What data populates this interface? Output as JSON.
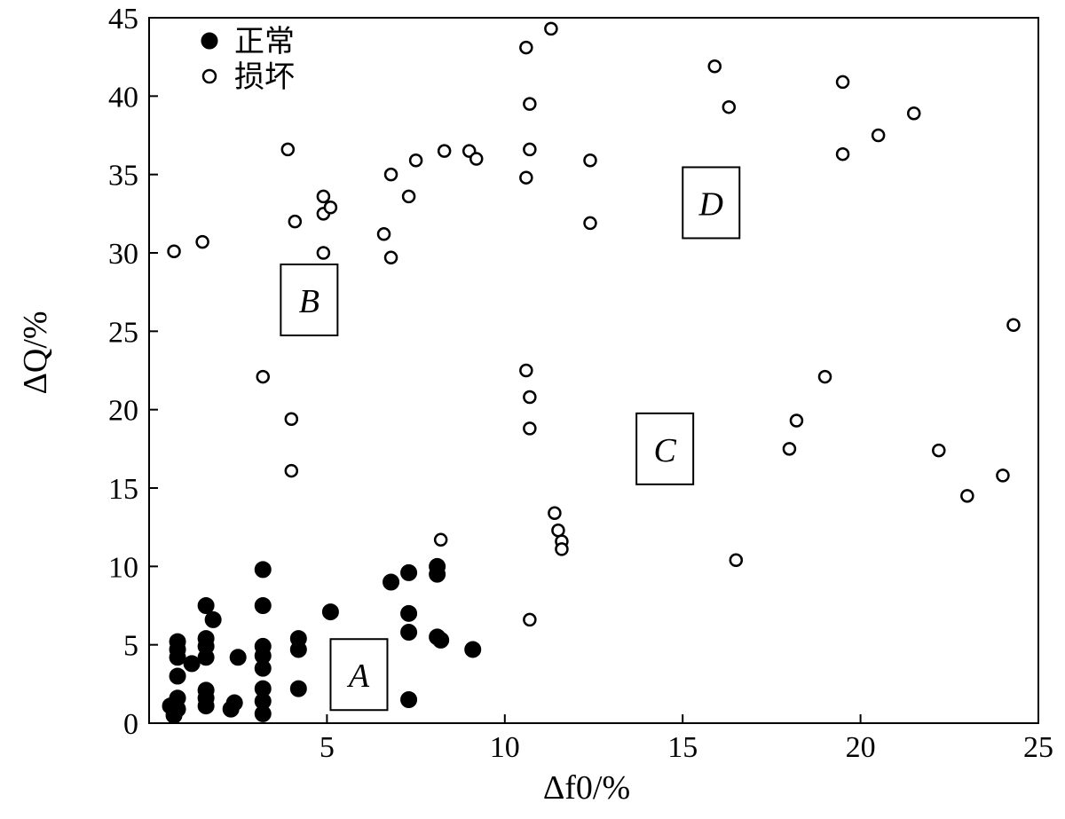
{
  "chart_data": {
    "type": "scatter",
    "xlabel": "Δf0/%",
    "ylabel": "ΔQ/%",
    "xlim": [
      0,
      25
    ],
    "ylim": [
      0,
      45
    ],
    "x_ticks": [
      5,
      10,
      15,
      20,
      25
    ],
    "y_ticks": [
      0,
      5,
      10,
      15,
      20,
      25,
      30,
      35,
      40,
      45
    ],
    "grid": false,
    "legend_position": "top-left",
    "series": [
      {
        "name": "正常",
        "marker": "filled-circle",
        "points": [
          [
            0.8,
            5.2
          ],
          [
            0.8,
            4.7
          ],
          [
            0.8,
            4.2
          ],
          [
            0.8,
            3.0
          ],
          [
            0.8,
            1.6
          ],
          [
            0.8,
            0.9
          ],
          [
            0.6,
            1.1
          ],
          [
            0.7,
            0.5
          ],
          [
            1.2,
            3.8
          ],
          [
            1.6,
            7.5
          ],
          [
            1.6,
            5.4
          ],
          [
            1.6,
            4.9
          ],
          [
            1.6,
            4.2
          ],
          [
            1.6,
            2.1
          ],
          [
            1.6,
            1.6
          ],
          [
            1.6,
            1.1
          ],
          [
            1.8,
            6.6
          ],
          [
            2.3,
            0.9
          ],
          [
            2.4,
            1.3
          ],
          [
            2.5,
            4.2
          ],
          [
            3.2,
            9.8
          ],
          [
            3.2,
            7.5
          ],
          [
            3.2,
            4.9
          ],
          [
            3.2,
            4.3
          ],
          [
            3.2,
            3.5
          ],
          [
            3.2,
            2.2
          ],
          [
            3.2,
            1.4
          ],
          [
            3.2,
            0.6
          ],
          [
            4.2,
            5.4
          ],
          [
            4.2,
            4.7
          ],
          [
            4.2,
            2.2
          ],
          [
            5.1,
            7.1
          ],
          [
            6.8,
            9.0
          ],
          [
            7.3,
            9.6
          ],
          [
            7.3,
            7.0
          ],
          [
            7.3,
            5.8
          ],
          [
            7.3,
            1.5
          ],
          [
            8.1,
            10.0
          ],
          [
            8.1,
            9.5
          ],
          [
            8.1,
            5.5
          ],
          [
            8.2,
            5.3
          ],
          [
            9.1,
            4.7
          ]
        ]
      },
      {
        "name": "损坏",
        "marker": "open-circle",
        "points": [
          [
            0.7,
            30.1
          ],
          [
            1.5,
            30.7
          ],
          [
            3.2,
            22.1
          ],
          [
            3.9,
            36.6
          ],
          [
            4.0,
            19.4
          ],
          [
            4.0,
            16.1
          ],
          [
            4.1,
            32.0
          ],
          [
            4.9,
            33.6
          ],
          [
            4.9,
            32.5
          ],
          [
            5.1,
            32.9
          ],
          [
            4.9,
            30.0
          ],
          [
            6.6,
            31.2
          ],
          [
            6.8,
            29.7
          ],
          [
            6.8,
            35.0
          ],
          [
            7.3,
            33.6
          ],
          [
            7.5,
            35.9
          ],
          [
            8.2,
            11.7
          ],
          [
            8.3,
            36.5
          ],
          [
            9.0,
            36.5
          ],
          [
            9.2,
            36.0
          ],
          [
            10.6,
            43.1
          ],
          [
            10.6,
            34.8
          ],
          [
            10.7,
            39.5
          ],
          [
            10.7,
            36.6
          ],
          [
            10.6,
            22.5
          ],
          [
            10.7,
            20.8
          ],
          [
            10.7,
            18.8
          ],
          [
            10.7,
            6.6
          ],
          [
            11.3,
            44.3
          ],
          [
            11.4,
            13.4
          ],
          [
            11.5,
            12.3
          ],
          [
            11.6,
            11.6
          ],
          [
            11.6,
            11.1
          ],
          [
            12.4,
            35.9
          ],
          [
            12.4,
            31.9
          ],
          [
            15.9,
            41.9
          ],
          [
            16.3,
            39.3
          ],
          [
            16.5,
            10.4
          ],
          [
            18.0,
            17.5
          ],
          [
            18.2,
            19.3
          ],
          [
            19.0,
            22.1
          ],
          [
            19.5,
            40.9
          ],
          [
            19.5,
            36.3
          ],
          [
            20.5,
            37.5
          ],
          [
            21.5,
            38.9
          ],
          [
            22.2,
            17.4
          ],
          [
            23.0,
            14.5
          ],
          [
            24.0,
            15.8
          ],
          [
            24.3,
            25.4
          ]
        ]
      }
    ],
    "annotations": [
      {
        "text": "A",
        "x": 5.9,
        "y": 3.1
      },
      {
        "text": "B",
        "x": 4.5,
        "y": 27.0
      },
      {
        "text": "C",
        "x": 14.5,
        "y": 17.5
      },
      {
        "text": "D",
        "x": 15.8,
        "y": 33.2
      }
    ]
  }
}
